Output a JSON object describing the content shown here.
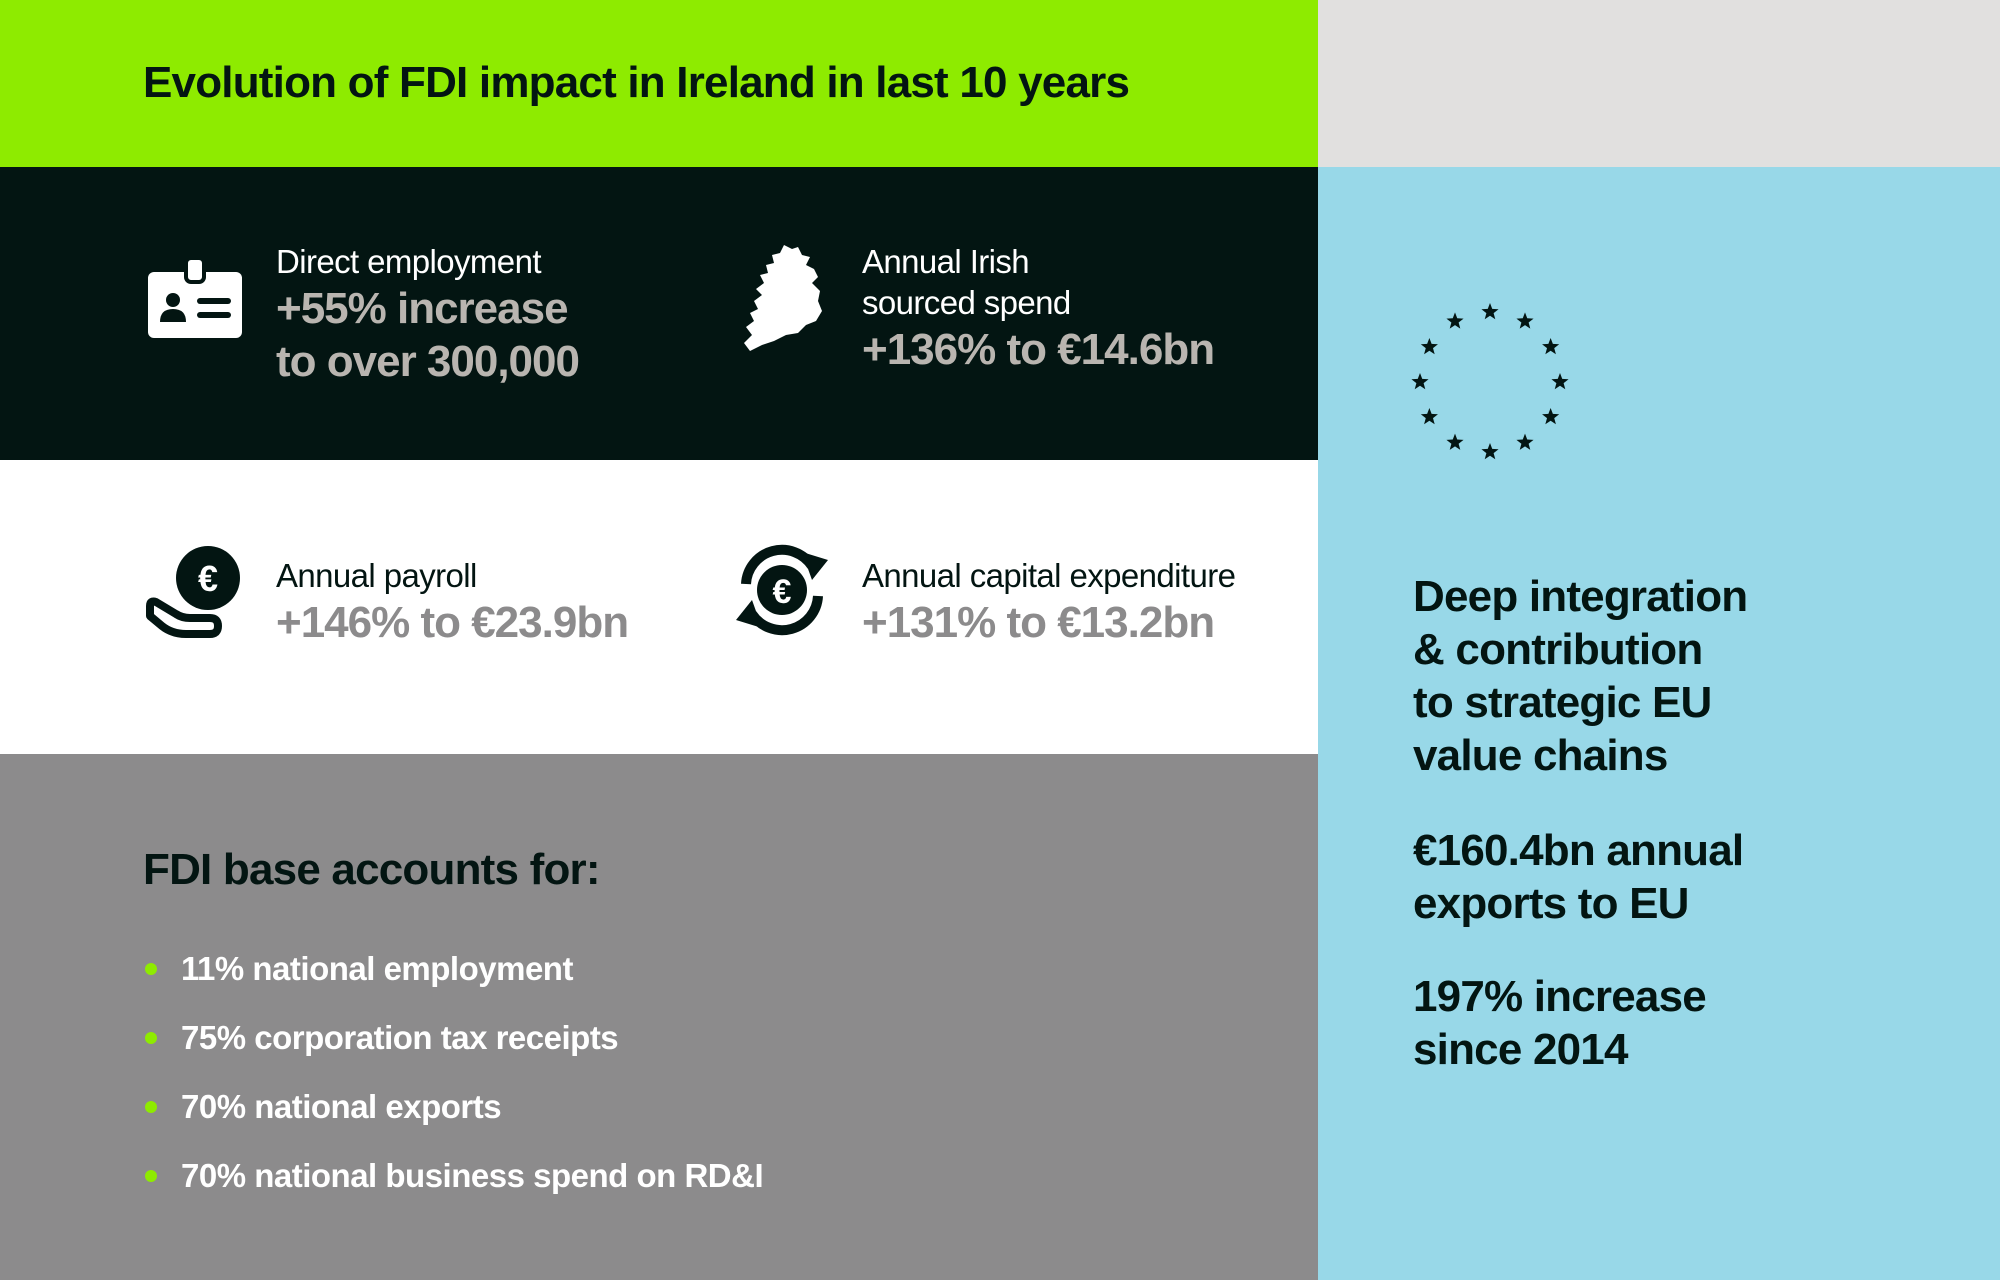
{
  "header": {
    "title": "Evolution of FDI impact in Ireland in last 10 years"
  },
  "colors": {
    "green": "#8eeb00",
    "dark": "#031512",
    "grey": "#8c8b8c",
    "light_blue": "#98d8e8",
    "corner_grey": "#e1e0df"
  },
  "stats": [
    {
      "icon": "id-badge-icon",
      "label_lines": [
        "Direct employment"
      ],
      "value_lines": [
        "+55% increase",
        "to over 300,000"
      ]
    },
    {
      "icon": "ireland-map-icon",
      "label_lines": [
        "Annual Irish",
        "sourced spend"
      ],
      "value_lines": [
        "+136% to €14.6bn"
      ]
    },
    {
      "icon": "euro-coin-hand-icon",
      "label_lines": [
        "Annual payroll"
      ],
      "value_lines": [
        "+146% to €23.9bn"
      ]
    },
    {
      "icon": "euro-cycle-arrows-icon",
      "label_lines": [
        "Annual capital expenditure"
      ],
      "value_lines": [
        "+131% to €13.2bn"
      ]
    }
  ],
  "fdi_base": {
    "heading": "FDI base accounts for:",
    "items": [
      "11% national employment",
      "75% corporation tax receipts",
      "70% national exports",
      "70% national business spend on RD&I"
    ]
  },
  "eu_panel": {
    "icon": "eu-stars-icon",
    "integration_lines": [
      "Deep integration",
      "& contribution",
      "to strategic EU",
      "value chains"
    ],
    "exports_lines": [
      "€160.4bn annual",
      "exports to EU"
    ],
    "increase_lines": [
      "197% increase",
      "since 2014"
    ]
  }
}
